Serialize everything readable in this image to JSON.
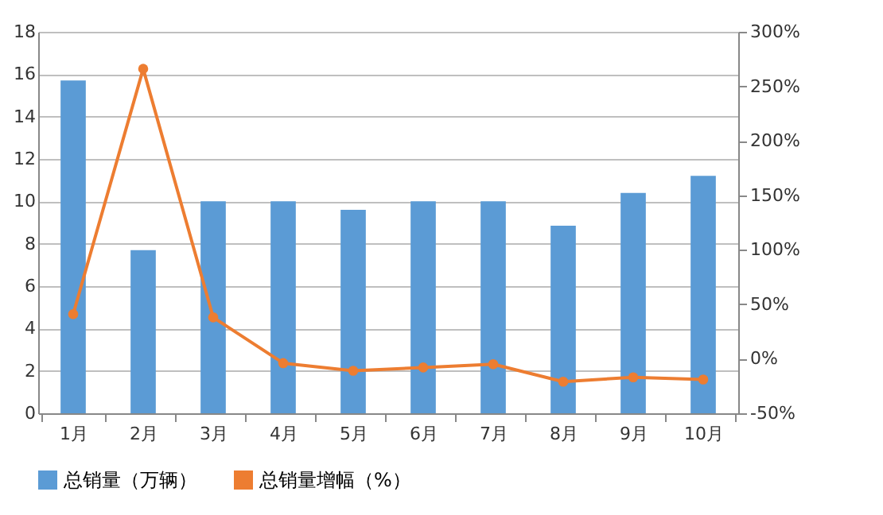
{
  "chart_data": {
    "type": "bar",
    "categories": [
      "1月",
      "2月",
      "3月",
      "4月",
      "5月",
      "6月",
      "7月",
      "8月",
      "9月",
      "10月"
    ],
    "series": [
      {
        "name": "总销量（万辆）",
        "color": "#5b9bd5",
        "values": [
          15.7,
          7.7,
          10,
          10,
          9.6,
          10,
          10,
          8.85,
          10.4,
          11.2
        ]
      },
      {
        "name": "总销量增幅（%）",
        "color": "#ed7d31",
        "type": "line",
        "axis": "y2",
        "values": [
          41,
          266,
          38,
          -4,
          -11,
          -8,
          -5,
          -21,
          -17,
          -19
        ]
      }
    ],
    "ylim": [
      0,
      18
    ],
    "yticks": [
      0,
      2,
      4,
      6,
      8,
      10,
      12,
      14,
      16,
      18
    ],
    "y2lim": [
      -50,
      300
    ],
    "y2ticks": [
      {
        "value": -50,
        "label": "-50%"
      },
      {
        "value": 0,
        "label": "0%"
      },
      {
        "value": 50,
        "label": "50%"
      },
      {
        "value": 100,
        "label": "100%"
      },
      {
        "value": 150,
        "label": "150%"
      },
      {
        "value": 200,
        "label": "200%"
      },
      {
        "value": 250,
        "label": "250%"
      },
      {
        "value": 300,
        "label": "300%"
      }
    ],
    "grid": "y",
    "legend": "bottom",
    "marker": "circle",
    "line_style": "solid"
  }
}
